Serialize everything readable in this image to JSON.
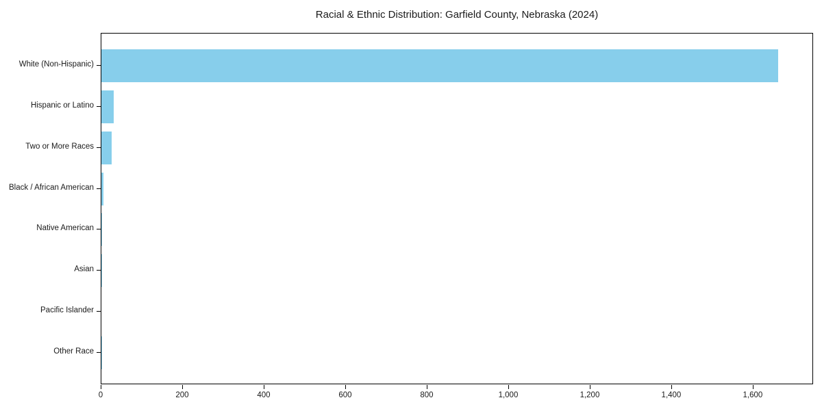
{
  "figure": {
    "background_color": "#ffffff"
  },
  "chart_data": {
    "type": "bar",
    "orientation": "horizontal",
    "title": "Racial & Ethnic Distribution: Garfield County, Nebraska (2024)",
    "categories": [
      "White (Non-Hispanic)",
      "Hispanic or Latino",
      "Two or More Races",
      "Black / African American",
      "Native American",
      "Asian",
      "Pacific Islander",
      "Other Race"
    ],
    "values": [
      1660,
      31,
      25,
      5,
      2,
      1,
      0,
      1
    ],
    "xlabel": "",
    "ylabel": "",
    "xlim": [
      0,
      1748
    ],
    "xticks": [
      0,
      200,
      400,
      600,
      800,
      1000,
      1200,
      1400,
      1600
    ],
    "xtick_labels": [
      "0",
      "200",
      "400",
      "600",
      "800",
      "1,000",
      "1,200",
      "1,400",
      "1,600"
    ],
    "grid": false,
    "legend": "none",
    "bar_color": "#87CEEB",
    "axis_color": "#000000",
    "text_color": "#1a1a1a"
  }
}
